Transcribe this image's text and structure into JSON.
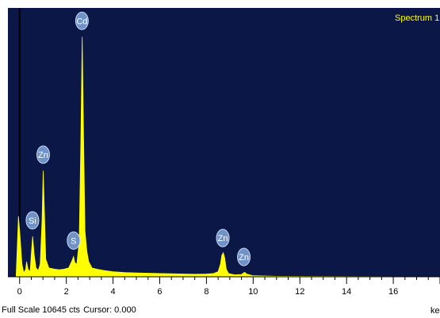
{
  "chart_data": {
    "type": "line",
    "title": "Spectrum 1",
    "x_unit_label": "ke",
    "xlim": [
      -0.5,
      18
    ],
    "ylim": [
      0,
      10645
    ],
    "x_ticks": [
      0,
      2,
      4,
      6,
      8,
      10,
      12,
      14,
      16
    ],
    "grid": false,
    "fill_color": "#ffff00",
    "plot_background": "#0a1747",
    "title_color": "#ffff00",
    "label_bubble_color": "#6f93c8",
    "series": [
      {
        "points": [
          [
            -0.15,
            0
          ],
          [
            -0.05,
            2400
          ],
          [
            0.02,
            1600
          ],
          [
            0.1,
            500
          ],
          [
            0.18,
            150
          ],
          [
            0.26,
            300
          ],
          [
            0.3,
            600
          ],
          [
            0.36,
            300
          ],
          [
            0.45,
            200
          ],
          [
            0.5,
            900
          ],
          [
            0.56,
            1600
          ],
          [
            0.62,
            900
          ],
          [
            0.7,
            350
          ],
          [
            0.8,
            250
          ],
          [
            0.88,
            500
          ],
          [
            0.96,
            2200
          ],
          [
            1.01,
            4200
          ],
          [
            1.06,
            2600
          ],
          [
            1.12,
            700
          ],
          [
            1.25,
            350
          ],
          [
            1.5,
            300
          ],
          [
            1.7,
            280
          ],
          [
            1.9,
            300
          ],
          [
            2.1,
            350
          ],
          [
            2.25,
            650
          ],
          [
            2.31,
            800
          ],
          [
            2.37,
            550
          ],
          [
            2.45,
            500
          ],
          [
            2.55,
            1400
          ],
          [
            2.62,
            5200
          ],
          [
            2.68,
            9500
          ],
          [
            2.74,
            5600
          ],
          [
            2.8,
            1800
          ],
          [
            2.88,
            1000
          ],
          [
            2.96,
            600
          ],
          [
            3.1,
            350
          ],
          [
            3.3,
            300
          ],
          [
            3.6,
            250
          ],
          [
            4.0,
            200
          ],
          [
            4.5,
            170
          ],
          [
            5.0,
            150
          ],
          [
            5.5,
            140
          ],
          [
            6.0,
            130
          ],
          [
            6.5,
            120
          ],
          [
            7.0,
            110
          ],
          [
            7.5,
            100
          ],
          [
            8.0,
            110
          ],
          [
            8.3,
            130
          ],
          [
            8.5,
            200
          ],
          [
            8.6,
            500
          ],
          [
            8.66,
            850
          ],
          [
            8.72,
            950
          ],
          [
            8.78,
            750
          ],
          [
            8.85,
            300
          ],
          [
            8.95,
            130
          ],
          [
            9.2,
            80
          ],
          [
            9.5,
            90
          ],
          [
            9.6,
            160
          ],
          [
            9.65,
            170
          ],
          [
            9.72,
            110
          ],
          [
            10.0,
            40
          ],
          [
            11.0,
            20
          ],
          [
            18.0,
            0
          ]
        ]
      }
    ],
    "annotations": [
      {
        "text": "Cd",
        "x": 2.67,
        "y": 9600
      },
      {
        "text": "Zn",
        "x": 1.01,
        "y": 4300
      },
      {
        "text": "Si",
        "x": 0.55,
        "y": 1700
      },
      {
        "text": "S",
        "x": 2.31,
        "y": 900
      },
      {
        "text": "Zn",
        "x": 8.7,
        "y": 1000
      },
      {
        "text": "Zn",
        "x": 9.6,
        "y": 250
      }
    ]
  },
  "footer": {
    "full_scale": "Full Scale 10645 cts",
    "cursor": "Cursor: 0.000"
  }
}
